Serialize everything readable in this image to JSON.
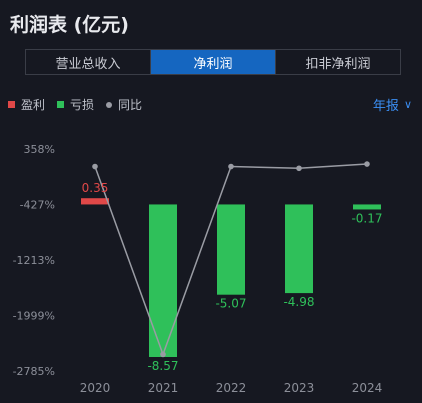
{
  "header": {
    "title": "利润表 (亿元)"
  },
  "tabs": [
    {
      "label": "营业总收入",
      "active": false
    },
    {
      "label": "净利润",
      "active": true
    },
    {
      "label": "扣非净利润",
      "active": false
    }
  ],
  "legend": {
    "profit_label": "盈利",
    "loss_label": "亏损",
    "yoy_label": "同比"
  },
  "period_selector": {
    "label": "年报",
    "icon": "chevron-down-icon"
  },
  "colors": {
    "profit": "#e04848",
    "loss": "#2fc05a",
    "yoy": "#9a9ca4",
    "accent": "#1566c0"
  },
  "chart_data": {
    "type": "bar",
    "categories": [
      "2020",
      "2021",
      "2022",
      "2023",
      "2024"
    ],
    "series": [
      {
        "name": "净利润",
        "values": [
          0.35,
          -8.57,
          -5.07,
          -4.98,
          -0.17
        ],
        "labels": [
          "0.35",
          "-8.57",
          "-5.07",
          "-4.98",
          "-0.17"
        ]
      },
      {
        "name": "同比",
        "values": [
          110,
          -2550,
          110,
          85,
          145
        ]
      }
    ],
    "yoy_axis": {
      "ticks": [
        358,
        -427,
        -1213,
        -1999,
        -2785
      ],
      "tick_labels": [
        "358%",
        "-427%",
        "-1213%",
        "-1999%",
        "-2785%"
      ]
    },
    "ylim": [
      -2785,
      358
    ],
    "grid": false
  }
}
